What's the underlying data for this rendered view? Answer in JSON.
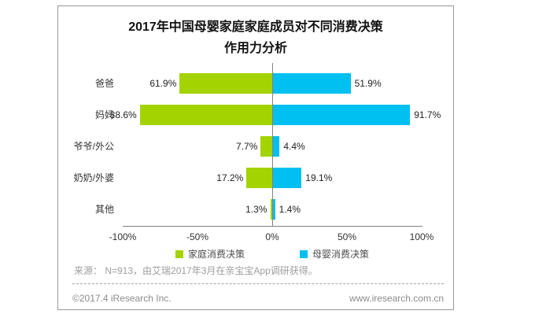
{
  "title": {
    "line1": "2017年中国母婴家庭家庭成员对不同消费决策",
    "line2": "作用力分析"
  },
  "chart_data": {
    "type": "bar",
    "orientation": "horizontal-diverging",
    "categories": [
      "爸爸",
      "妈妈",
      "爷爷/外公",
      "奶奶/外婆",
      "其他"
    ],
    "series": [
      {
        "name": "家庭消费决策",
        "side": "left",
        "color": "#A4D302",
        "values": [
          61.9,
          88.6,
          7.7,
          17.2,
          1.3
        ]
      },
      {
        "name": "母婴消费决策",
        "side": "right",
        "color": "#00C0F2",
        "values": [
          51.9,
          91.7,
          4.4,
          19.1,
          1.4
        ]
      }
    ],
    "value_suffix": "%",
    "x_tick_labels": [
      "-100%",
      "-50%",
      "0%",
      "50%",
      "100%"
    ],
    "x_tick_values": [
      -100,
      -50,
      0,
      50,
      100
    ],
    "xlim": [
      -100,
      100
    ],
    "grid": false,
    "legend_position": "bottom"
  },
  "source_note": "来源： N=913，由艾瑞2017年3月在亲宝宝App调研获得。",
  "footer": {
    "copyright": "©2017.4 iResearch Inc.",
    "website": "www.iresearch.com.cn"
  },
  "colors": {
    "series_green": "#A4D302",
    "series_blue": "#00C0F2",
    "axis_line": "#808080",
    "card_border": "#999999",
    "text_dark": "#222222",
    "text_gray": "#9e9e9e"
  }
}
